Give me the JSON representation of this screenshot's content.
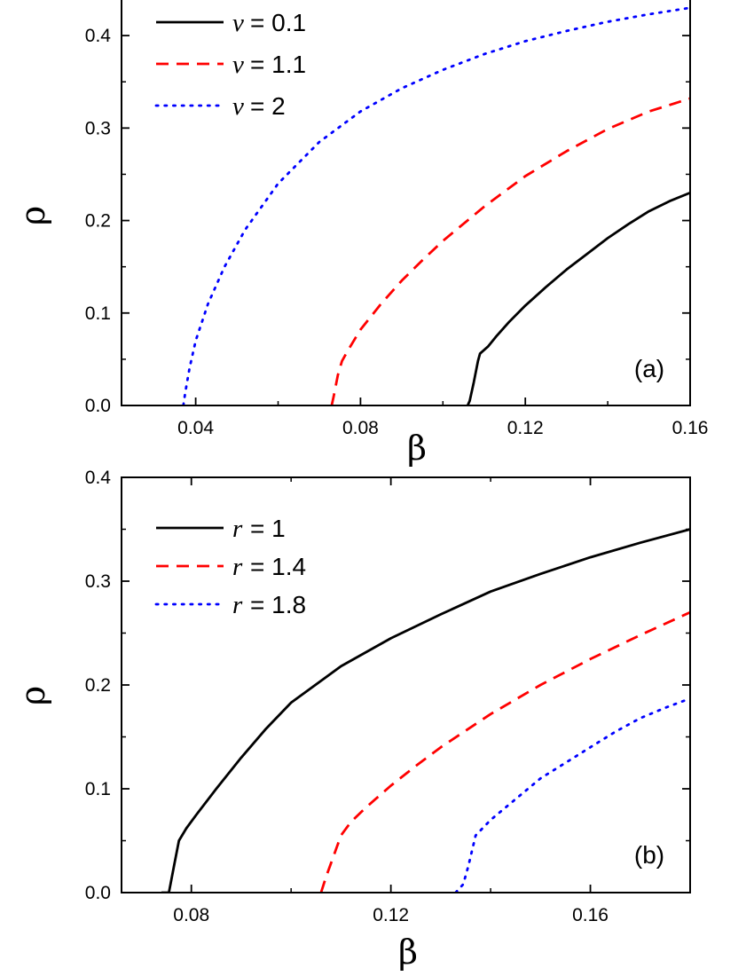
{
  "chart_data": [
    {
      "type": "line",
      "panel_label": "(a)",
      "xlabel": "β",
      "ylabel": "ρ",
      "xlim": [
        0.022,
        0.16
      ],
      "ylim": [
        0.0,
        0.45
      ],
      "xticks": [
        0.04,
        0.08,
        0.12,
        0.16
      ],
      "xtick_labels": [
        "0.04",
        "0.08",
        "0.12",
        "0.16"
      ],
      "yticks": [
        0.0,
        0.1,
        0.2,
        0.3,
        0.4
      ],
      "ytick_labels": [
        "0.0",
        "0.1",
        "0.2",
        "0.3",
        "0.4"
      ],
      "legend_position": "top-left",
      "series": [
        {
          "var": "v",
          "name": "= 0.1",
          "color": "#000000",
          "dash": "solid",
          "x": [
            0.106,
            0.1065,
            0.1075,
            0.1085,
            0.109,
            0.111,
            0.113,
            0.116,
            0.12,
            0.125,
            0.13,
            0.135,
            0.14,
            0.145,
            0.15,
            0.155,
            0.16
          ],
          "y": [
            0.0,
            0.005,
            0.025,
            0.048,
            0.056,
            0.064,
            0.075,
            0.09,
            0.108,
            0.128,
            0.147,
            0.164,
            0.181,
            0.196,
            0.21,
            0.221,
            0.23
          ]
        },
        {
          "var": "v",
          "name": "= 1.1",
          "color": "#ff0000",
          "dash": "dashed",
          "x": [
            0.073,
            0.0735,
            0.0745,
            0.0755,
            0.077,
            0.08,
            0.085,
            0.09,
            0.095,
            0.1,
            0.11,
            0.12,
            0.13,
            0.14,
            0.15,
            0.16
          ],
          "y": [
            0.0,
            0.01,
            0.033,
            0.048,
            0.06,
            0.082,
            0.11,
            0.135,
            0.157,
            0.178,
            0.215,
            0.248,
            0.275,
            0.299,
            0.318,
            0.332
          ]
        },
        {
          "var": "v",
          "name": "= 2",
          "color": "#0000ff",
          "dash": "dotted",
          "x": [
            0.037,
            0.0375,
            0.0385,
            0.04,
            0.043,
            0.047,
            0.052,
            0.06,
            0.07,
            0.08,
            0.09,
            0.1,
            0.11,
            0.12,
            0.13,
            0.14,
            0.15,
            0.16
          ],
          "y": [
            0.0,
            0.015,
            0.04,
            0.07,
            0.11,
            0.15,
            0.19,
            0.24,
            0.285,
            0.318,
            0.343,
            0.363,
            0.38,
            0.394,
            0.405,
            0.415,
            0.423,
            0.43
          ]
        }
      ]
    },
    {
      "type": "line",
      "panel_label": "(b)",
      "xlabel": "β",
      "ylabel": "ρ",
      "xlim": [
        0.066,
        0.18
      ],
      "ylim": [
        0.0,
        0.4
      ],
      "xticks": [
        0.08,
        0.12,
        0.16
      ],
      "xtick_labels": [
        "0.08",
        "0.12",
        "0.16"
      ],
      "yticks": [
        0.0,
        0.1,
        0.2,
        0.3,
        0.4
      ],
      "ytick_labels": [
        "0.0",
        "0.1",
        "0.2",
        "0.3",
        "0.4"
      ],
      "legend_position": "top-left",
      "series": [
        {
          "var": "r",
          "name": "= 1",
          "color": "#000000",
          "dash": "solid",
          "x": [
            0.074,
            0.0755,
            0.0765,
            0.0775,
            0.079,
            0.081,
            0.085,
            0.09,
            0.095,
            0.1,
            0.11,
            0.12,
            0.13,
            0.14,
            0.15,
            0.16,
            0.17,
            0.18
          ],
          "y": [
            0.0,
            0.0,
            0.025,
            0.05,
            0.062,
            0.075,
            0.1,
            0.13,
            0.158,
            0.183,
            0.218,
            0.245,
            0.268,
            0.29,
            0.307,
            0.323,
            0.337,
            0.35
          ]
        },
        {
          "var": "r",
          "name": "= 1.4",
          "color": "#ff0000",
          "dash": "dashed",
          "x": [
            0.106,
            0.107,
            0.1085,
            0.11,
            0.112,
            0.115,
            0.12,
            0.125,
            0.13,
            0.14,
            0.15,
            0.16,
            0.17,
            0.18
          ],
          "y": [
            0.0,
            0.015,
            0.035,
            0.055,
            0.068,
            0.082,
            0.103,
            0.122,
            0.14,
            0.172,
            0.2,
            0.225,
            0.248,
            0.27
          ]
        },
        {
          "var": "r",
          "name": "= 1.8",
          "color": "#0000ff",
          "dash": "dotted",
          "x": [
            0.133,
            0.1345,
            0.1355,
            0.137,
            0.14,
            0.145,
            0.15,
            0.155,
            0.16,
            0.165,
            0.17,
            0.175,
            0.18
          ],
          "y": [
            0.0,
            0.008,
            0.025,
            0.055,
            0.07,
            0.09,
            0.11,
            0.125,
            0.14,
            0.155,
            0.168,
            0.178,
            0.187
          ]
        }
      ]
    }
  ]
}
